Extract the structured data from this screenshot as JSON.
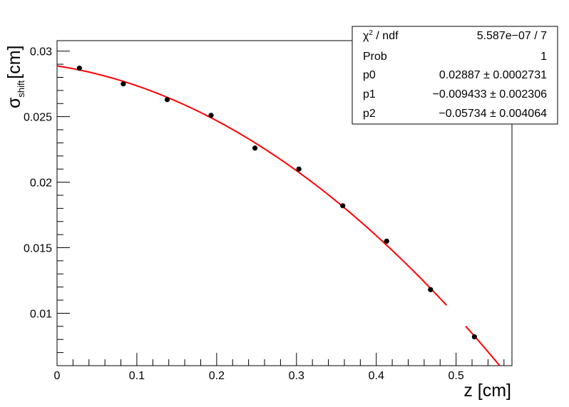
{
  "chart_data": {
    "type": "scatter",
    "title": "",
    "xlabel": "z [cm]",
    "ylabel_main": "σ",
    "ylabel_sub": "shift",
    "ylabel_unit": "[cm]",
    "xlim": [
      0,
      0.57
    ],
    "ylim": [
      0.006,
      0.0308
    ],
    "x_ticks": [
      {
        "value": 0,
        "label": "0"
      },
      {
        "value": 0.1,
        "label": "0.1"
      },
      {
        "value": 0.2,
        "label": "0.2"
      },
      {
        "value": 0.3,
        "label": "0.3"
      },
      {
        "value": 0.4,
        "label": "0.4"
      },
      {
        "value": 0.5,
        "label": "0.5"
      }
    ],
    "y_ticks": [
      {
        "value": 0.01,
        "label": "0.01"
      },
      {
        "value": 0.015,
        "label": "0.015"
      },
      {
        "value": 0.02,
        "label": "0.02"
      },
      {
        "value": 0.025,
        "label": "0.025"
      },
      {
        "value": 0.03,
        "label": "0.03"
      }
    ],
    "grid": false,
    "points": {
      "color": "#000000",
      "x": [
        0.028,
        0.083,
        0.138,
        0.193,
        0.248,
        0.303,
        0.358,
        0.413,
        0.468,
        0.523
      ],
      "y": [
        0.0287,
        0.0275,
        0.0263,
        0.0251,
        0.0226,
        0.021,
        0.0182,
        0.0155,
        0.0118,
        0.0082
      ]
    },
    "fit": {
      "color": "#ff0000",
      "function": "pol2",
      "p0": 0.02887,
      "p1": -0.009433,
      "p2": -0.05734,
      "x_range": [
        0,
        0.56
      ],
      "gap": [
        0.488,
        0.512
      ]
    },
    "stats_box": {
      "position": "top-right",
      "rows": [
        {
          "name": "chi2ndf",
          "label_main": "χ",
          "label_sup": "2",
          "label_rest": " / ndf",
          "value": "5.587e−07 / 7"
        },
        {
          "name": "prob",
          "label": "Prob",
          "value": "1"
        },
        {
          "name": "p0",
          "label": "p0",
          "value": "0.02887 ± 0.0002731"
        },
        {
          "name": "p1",
          "label": "p1",
          "value": "−0.009433 ± 0.002306"
        },
        {
          "name": "p2",
          "label": "p2",
          "value": "−0.05734 ± 0.004064"
        }
      ]
    }
  }
}
